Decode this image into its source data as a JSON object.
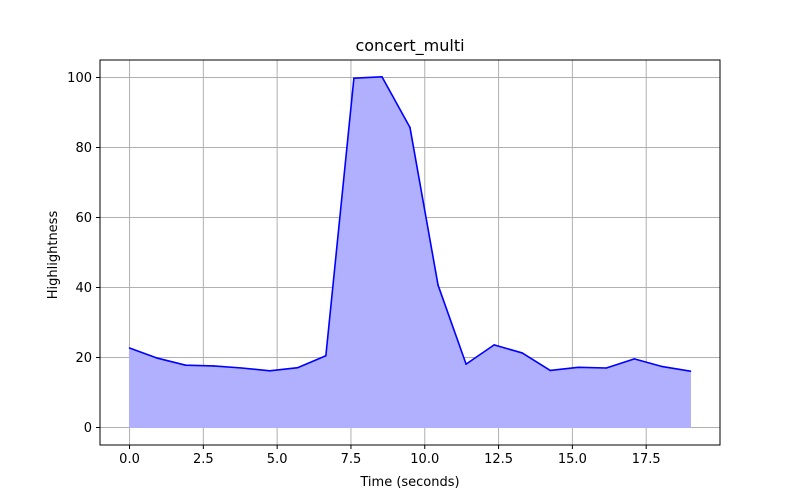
{
  "chart_data": {
    "type": "area",
    "title": "concert_multi",
    "xlabel": "Time (seconds)",
    "ylabel": "Highlightness",
    "xlim": [
      -1.0,
      20.0
    ],
    "ylim": [
      -5,
      105
    ],
    "x_ticks": [
      "0.0",
      "2.5",
      "5.0",
      "7.5",
      "10.0",
      "12.5",
      "15.0",
      "17.5"
    ],
    "y_ticks": [
      "0",
      "20",
      "40",
      "60",
      "80",
      "100"
    ],
    "grid": true,
    "colors": {
      "line": "#0000ff",
      "fill": "#b0b0ff",
      "grid": "#b0b0b0"
    },
    "series": [
      {
        "x": [
          0.0,
          0.95,
          1.9,
          2.85,
          3.8,
          4.75,
          5.7,
          6.65,
          7.6,
          8.55,
          9.5,
          10.45,
          11.4,
          12.35,
          13.3,
          14.25,
          15.2,
          16.15,
          17.1,
          18.05,
          19.0
        ],
        "values": [
          22.7,
          19.8,
          17.8,
          17.6,
          17.0,
          16.2,
          17.1,
          20.5,
          99.8,
          100.2,
          85.7,
          40.7,
          18.1,
          23.6,
          21.3,
          16.3,
          17.2,
          17.0,
          19.6,
          17.4,
          16.1
        ]
      }
    ]
  }
}
